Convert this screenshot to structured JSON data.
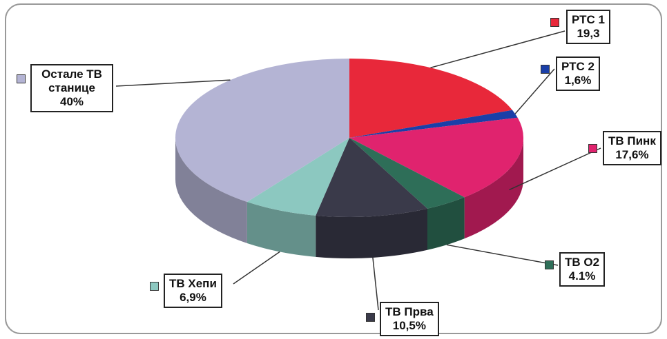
{
  "chart_data": {
    "type": "pie",
    "categories": [
      "РТС 1",
      "РТС 2",
      "ТВ Пинк",
      "ТВ О2",
      "ТВ Прва",
      "ТВ Хепи",
      "Остале ТВ станице"
    ],
    "values": [
      19.3,
      1.6,
      17.6,
      4.1,
      10.5,
      6.9,
      40
    ],
    "value_labels": [
      "19,3",
      "1,6%",
      "17,6%",
      "4.1%",
      "10,5%",
      "6,9%",
      "40%"
    ],
    "colors": [
      "#e8283a",
      "#1a3fa8",
      "#e0236e",
      "#2e6e58",
      "#3a3a4a",
      "#8cc8c0",
      "#b4b4d4"
    ]
  }
}
